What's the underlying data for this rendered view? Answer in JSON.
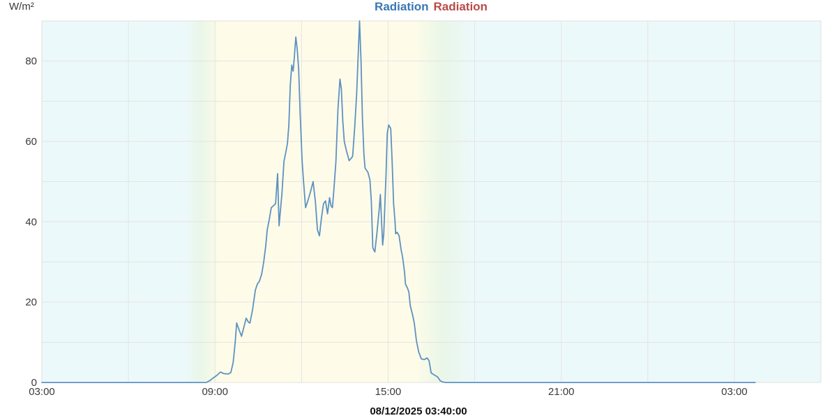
{
  "page": {
    "background": "#ffffff"
  },
  "header": {
    "unit_label": "W/m²",
    "legend": [
      {
        "label": "Radiation",
        "color": "#3a77b5"
      },
      {
        "label": "Radiation",
        "color": "#b94a48"
      }
    ]
  },
  "footer": {
    "timestamp": "08/12/2025 03:40:00"
  },
  "chart_data": {
    "type": "line",
    "title": "Radiation Radiation",
    "ylabel": "W/m²",
    "xlabel": "",
    "legend_position": "top-center",
    "grid": true,
    "x_axis": {
      "start_hour": 3,
      "end_hour": 30,
      "ticks": [
        {
          "t": 3,
          "label": "03:00"
        },
        {
          "t": 9,
          "label": "09:00"
        },
        {
          "t": 15,
          "label": "15:00"
        },
        {
          "t": 21,
          "label": "21:00"
        },
        {
          "t": 27,
          "label": "03:00"
        }
      ],
      "grid_hours": [
        6,
        9,
        12,
        15,
        18,
        21,
        24,
        27
      ]
    },
    "y_axis": {
      "min": 0,
      "max": 90,
      "tick_values": [
        0,
        20,
        40,
        60,
        80
      ],
      "grid_values": [
        10,
        20,
        30,
        40,
        50,
        60,
        70,
        80
      ]
    },
    "colors": {
      "line": "#5e91c1",
      "grid": "#e4e4df",
      "border": "#e0e0db",
      "night_band": "#ecf9fb",
      "twilight_band": "#e9f6e8",
      "day_band": "#fefce9",
      "tick_text": "#3a3a3a"
    },
    "background_stops": [
      {
        "t": 3.0,
        "c": "#ecf9fb"
      },
      {
        "t": 7.95,
        "c": "#ecf9fb"
      },
      {
        "t": 8.5,
        "c": "#e9f6e8"
      },
      {
        "t": 9.2,
        "c": "#fefce9"
      },
      {
        "t": 15.9,
        "c": "#fefce9"
      },
      {
        "t": 16.9,
        "c": "#e9f6e8"
      },
      {
        "t": 18.0,
        "c": "#ecf9fb"
      },
      {
        "t": 30.0,
        "c": "#ecf9fb"
      }
    ],
    "series": [
      {
        "name": "Radiation",
        "color": "#5e91c1",
        "points": [
          [
            3.0,
            0
          ],
          [
            8.7,
            0
          ],
          [
            8.83,
            0.5
          ],
          [
            8.95,
            1.2
          ],
          [
            9.07,
            1.8
          ],
          [
            9.19,
            2.6
          ],
          [
            9.31,
            2.2
          ],
          [
            9.46,
            2.1
          ],
          [
            9.55,
            2.5
          ],
          [
            9.63,
            5
          ],
          [
            9.7,
            10
          ],
          [
            9.75,
            14.8
          ],
          [
            9.84,
            13
          ],
          [
            9.92,
            11.5
          ],
          [
            10.01,
            14
          ],
          [
            10.08,
            16
          ],
          [
            10.16,
            15
          ],
          [
            10.21,
            14.8
          ],
          [
            10.3,
            18
          ],
          [
            10.4,
            23
          ],
          [
            10.47,
            24.5
          ],
          [
            10.54,
            25.2
          ],
          [
            10.62,
            27
          ],
          [
            10.69,
            30
          ],
          [
            10.76,
            34
          ],
          [
            10.81,
            38
          ],
          [
            10.88,
            40.5
          ],
          [
            10.95,
            43.5
          ],
          [
            11.03,
            44
          ],
          [
            11.1,
            44.5
          ],
          [
            11.17,
            52
          ],
          [
            11.22,
            39
          ],
          [
            11.32,
            47
          ],
          [
            11.39,
            55
          ],
          [
            11.46,
            57.5
          ],
          [
            11.51,
            59.5
          ],
          [
            11.56,
            64
          ],
          [
            11.61,
            74
          ],
          [
            11.66,
            79
          ],
          [
            11.71,
            77.5
          ],
          [
            11.75,
            81
          ],
          [
            11.8,
            86
          ],
          [
            11.85,
            83
          ],
          [
            11.9,
            78
          ],
          [
            11.95,
            67
          ],
          [
            12.02,
            55
          ],
          [
            12.07,
            50
          ],
          [
            12.14,
            43.5
          ],
          [
            12.21,
            45
          ],
          [
            12.31,
            47.5
          ],
          [
            12.4,
            50
          ],
          [
            12.48,
            45
          ],
          [
            12.55,
            38
          ],
          [
            12.62,
            36.5
          ],
          [
            12.69,
            41
          ],
          [
            12.76,
            44.5
          ],
          [
            12.83,
            45.2
          ],
          [
            12.9,
            42
          ],
          [
            12.97,
            46
          ],
          [
            13.02,
            44
          ],
          [
            13.07,
            43.5
          ],
          [
            13.12,
            48
          ],
          [
            13.19,
            55
          ],
          [
            13.26,
            68
          ],
          [
            13.33,
            75.5
          ],
          [
            13.38,
            73
          ],
          [
            13.43,
            65
          ],
          [
            13.48,
            60
          ],
          [
            13.55,
            57.8
          ],
          [
            13.65,
            55.2
          ],
          [
            13.72,
            55.8
          ],
          [
            13.77,
            56.3
          ],
          [
            13.84,
            63.4
          ],
          [
            13.91,
            72
          ],
          [
            13.96,
            81
          ],
          [
            14.01,
            90
          ],
          [
            14.06,
            80
          ],
          [
            14.11,
            66
          ],
          [
            14.16,
            57
          ],
          [
            14.2,
            53.4
          ],
          [
            14.3,
            52.3
          ],
          [
            14.37,
            50.4
          ],
          [
            14.42,
            45
          ],
          [
            14.47,
            33.5
          ],
          [
            14.54,
            32.5
          ],
          [
            14.61,
            37
          ],
          [
            14.69,
            43
          ],
          [
            14.73,
            46.8
          ],
          [
            14.81,
            34.2
          ],
          [
            14.85,
            37
          ],
          [
            14.93,
            52
          ],
          [
            14.97,
            62
          ],
          [
            15.02,
            64.1
          ],
          [
            15.09,
            63.2
          ],
          [
            15.14,
            55
          ],
          [
            15.19,
            44.5
          ],
          [
            15.24,
            40
          ],
          [
            15.26,
            37
          ],
          [
            15.31,
            37.4
          ],
          [
            15.38,
            36.5
          ],
          [
            15.45,
            33
          ],
          [
            15.5,
            31.3
          ],
          [
            15.57,
            27.5
          ],
          [
            15.6,
            24.5
          ],
          [
            15.67,
            23.5
          ],
          [
            15.72,
            22.5
          ],
          [
            15.77,
            19
          ],
          [
            15.86,
            16.5
          ],
          [
            15.91,
            14.6
          ],
          [
            15.98,
            10.4
          ],
          [
            16.06,
            7.6
          ],
          [
            16.15,
            5.9
          ],
          [
            16.25,
            5.7
          ],
          [
            16.35,
            6.1
          ],
          [
            16.42,
            5.4
          ],
          [
            16.49,
            2.4
          ],
          [
            16.59,
            1.9
          ],
          [
            16.71,
            1.4
          ],
          [
            16.81,
            0.4
          ],
          [
            16.9,
            0.1
          ],
          [
            17.0,
            0
          ],
          [
            27.72,
            0
          ]
        ]
      }
    ]
  }
}
